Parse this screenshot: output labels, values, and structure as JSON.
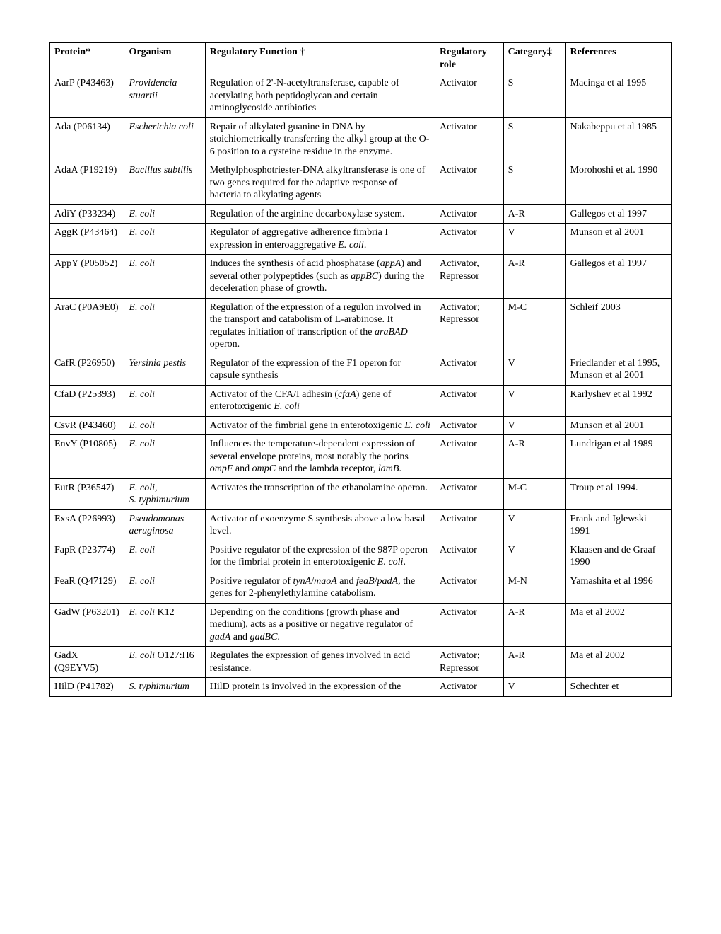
{
  "columns": {
    "protein": "Protein*",
    "organism": "Organism",
    "function": "Regulatory Function †",
    "role": "Regulatory role",
    "category": "Category‡",
    "refs": "References"
  },
  "rows": [
    {
      "protein": "AarP (P43463)",
      "organism_html": "<span class='italic'>Providencia stuartii</span>",
      "function_html": "Regulation of 2'-N-acetyltransferase, capable of acetylating both peptidoglycan and certain aminoglycoside antibiotics",
      "role": "Activator",
      "category": "S",
      "refs": "Macinga et al 1995"
    },
    {
      "protein": "Ada (P06134)",
      "organism_html": "<span class='italic'>Escherichia coli</span>",
      "function_html": "Repair of alkylated guanine in DNA by stoichiometrically transferring the alkyl group at the O-6 position to a cysteine residue in the enzyme.",
      "role": "Activator",
      "category": "S",
      "refs": "Nakabeppu et al 1985"
    },
    {
      "protein": "AdaA (P19219)",
      "organism_html": "<span class='italic'>Bacillus subtilis</span>",
      "function_html": "Methylphosphotriester-DNA alkyltransferase is one of two genes required for the adaptive response of bacteria to alkylating agents",
      "role": "Activator",
      "category": "S",
      "refs": "Morohoshi et al. 1990"
    },
    {
      "protein": "AdiY (P33234)",
      "organism_html": "<span class='italic'>E. coli</span>",
      "function_html": "Regulation of the arginine decarboxylase system.",
      "role": "Activator",
      "category": "A-R",
      "refs": "Gallegos et al 1997"
    },
    {
      "protein": "AggR (P43464)",
      "organism_html": "<span class='italic'>E. coli</span>",
      "function_html": "Regulator of aggregative adherence fimbria I expression in enteroaggregative <span class='italic'>E. coli</span>.",
      "role": "Activator",
      "category": "V",
      "refs": "Munson et al 2001"
    },
    {
      "protein": "AppY (P05052)",
      "organism_html": "<span class='italic'>E. coli</span>",
      "function_html": "Induces the synthesis of acid phosphatase (<span class='italic'>appA</span>) and several other polypeptides (such as <span class='italic'>appBC</span>) during the deceleration phase of growth.",
      "role": "Activator, Repressor",
      "category": "A-R",
      "refs": "Gallegos et al 1997"
    },
    {
      "protein": "AraC (P0A9E0)",
      "organism_html": "<span class='italic'>E. coli</span>",
      "function_html": "Regulation of the expression of a regulon involved in the transport and catabolism of L-arabinose. It regulates initiation of transcription of the <span class='italic'>araBAD</span> operon.",
      "role": "Activator; Repressor",
      "category": "M-C",
      "refs": "Schleif 2003"
    },
    {
      "protein": "CafR (P26950)",
      "organism_html": "<span class='italic'>Yersinia pestis</span>",
      "function_html": "Regulator of the expression of the F1 operon for capsule synthesis",
      "role": "Activator",
      "category": "V",
      "refs": "Friedlander et al 1995, Munson et al 2001"
    },
    {
      "protein": "CfaD (P25393)",
      "organism_html": "<span class='italic'>E. coli</span>",
      "function_html": "Activator of the CFA/I adhesin (<span class='italic'>cfaA</span>) gene of enterotoxigenic <span class='italic'>E. coli</span>",
      "role": "Activator",
      "category": "V",
      "refs": "Karlyshev et al 1992"
    },
    {
      "protein": "CsvR (P43460)",
      "organism_html": "<span class='italic'>E. coli</span>",
      "function_html": "Activator of the fimbrial gene in enterotoxigenic <span class='italic'>E. coli</span>",
      "role": "Activator",
      "category": "V",
      "refs": "Munson et al 2001"
    },
    {
      "protein": "EnvY (P10805)",
      "organism_html": "<span class='italic'>E. coli</span>",
      "function_html": "Influences the temperature-dependent expression of several envelope proteins, most notably the porins <span class='italic'>ompF</span> and <span class='italic'>ompC</span> and the lambda receptor, <span class='italic'>lamB</span>.",
      "role": "Activator",
      "category": "A-R",
      "refs": "Lundrigan et al 1989"
    },
    {
      "protein": "EutR (P36547)",
      "organism_html": "<span class='italic'>E. coli,</span><br><span class='italic'>S. typhimurium</span>",
      "function_html": "Activates the transcription of the ethanolamine operon.",
      "role": "Activator",
      "category": "M-C",
      "refs": "Troup et al 1994."
    },
    {
      "protein": "ExsA (P26993)",
      "organism_html": "<span class='italic'>Pseudomonas aeruginosa</span>",
      "function_html": "Activator of exoenzyme S synthesis above a low basal level.",
      "role": "Activator",
      "category": "V",
      "refs": "Frank and Iglewski 1991"
    },
    {
      "protein": "FapR (P23774)",
      "organism_html": "<span class='italic'>E. coli</span>",
      "function_html": "Positive regulator of the expression of the 987P operon for the fimbrial protein in enterotoxigenic <span class='italic'>E. coli</span>.",
      "role": "Activator",
      "category": "V",
      "refs": "Klaasen and de Graaf 1990"
    },
    {
      "protein": "FeaR (Q47129)",
      "organism_html": "<span class='italic'>E. coli</span>",
      "function_html": "Positive regulator of <span class='italic'>tynA</span>/<span class='italic'>maoA</span> and <span class='italic'>feaB</span>/<span class='italic'>padA</span>, the genes for 2-phenylethylamine catabolism.",
      "role": "Activator",
      "category": "M-N",
      "refs": "Yamashita et al 1996"
    },
    {
      "protein": "GadW (P63201)",
      "organism_html": "<span class='italic'>E. coli</span> K12",
      "function_html": "Depending on the conditions (growth phase and medium), acts as a positive or negative regulator of <span class='italic'>gadA</span> and <span class='italic'>gadBC</span>.",
      "role": "Activator",
      "category": "A-R",
      "refs": "Ma et al 2002"
    },
    {
      "protein": "GadX (Q9EYV5)",
      "organism_html": "<span class='italic'>E. coli</span> O127:H6",
      "function_html": "Regulates the expression of genes involved in acid resistance.",
      "role": "Activator; Repressor",
      "category": "A-R",
      "refs": "Ma et al 2002"
    },
    {
      "protein": "HilD (P41782)",
      "organism_html": "<span class='italic'>S. typhimurium</span>",
      "function_html": "HilD protein is involved in the expression of the",
      "role": "Activator",
      "category": "V",
      "refs": "Schechter et"
    }
  ]
}
